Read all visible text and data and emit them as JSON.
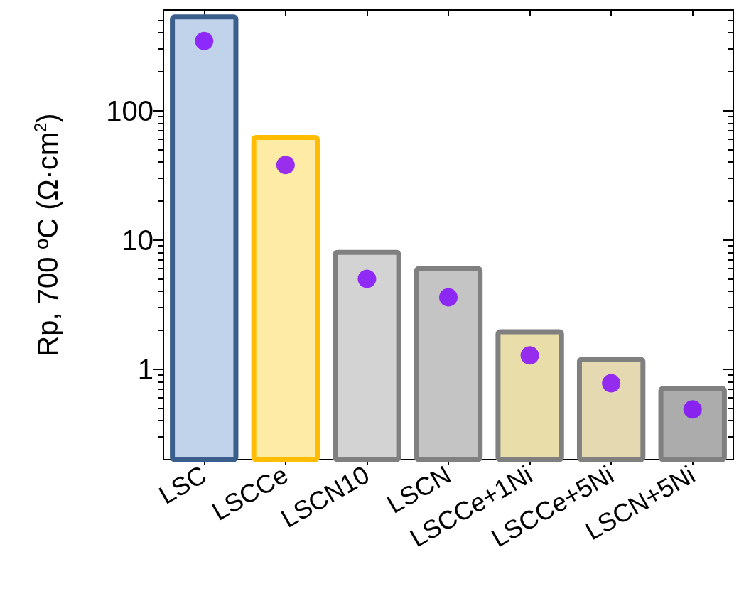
{
  "chart_data": {
    "type": "bar",
    "ylabel": "Rp, 700 ºC (Ω·cm$^{2}$)",
    "categories": [
      "LSC",
      "LSCCe",
      "LSCN10",
      "LSCN",
      "LSCCe+1Ni",
      "LSCCe+5Ni",
      "LSCN+5Ni"
    ],
    "series": [
      {
        "values": [
          530,
          62,
          8,
          6,
          1.95,
          1.19,
          0.71
        ],
        "colors": [
          "#c0d3ea",
          "#feeba5",
          "#d3d3d3",
          "#c4c4c4",
          "#e9dda9",
          "#e4d9b1",
          "#acacac"
        ]
      },
      {
        "type": "scatter",
        "color": "#7f00ff",
        "x": [
          "LSC",
          "LSCCe",
          "LSCN10",
          "LSCN",
          "LSCCe+1Ni",
          "LSCCe+5Ni",
          "LSCN+5Ni"
        ],
        "values": [
          345,
          38,
          5,
          3.6,
          1.28,
          0.78,
          0.49
        ]
      }
    ],
    "log": "y",
    "ylim": [
      0.2,
      600
    ],
    "yticks": [
      1,
      10,
      100
    ],
    "grid": false,
    "marker": "circle"
  }
}
